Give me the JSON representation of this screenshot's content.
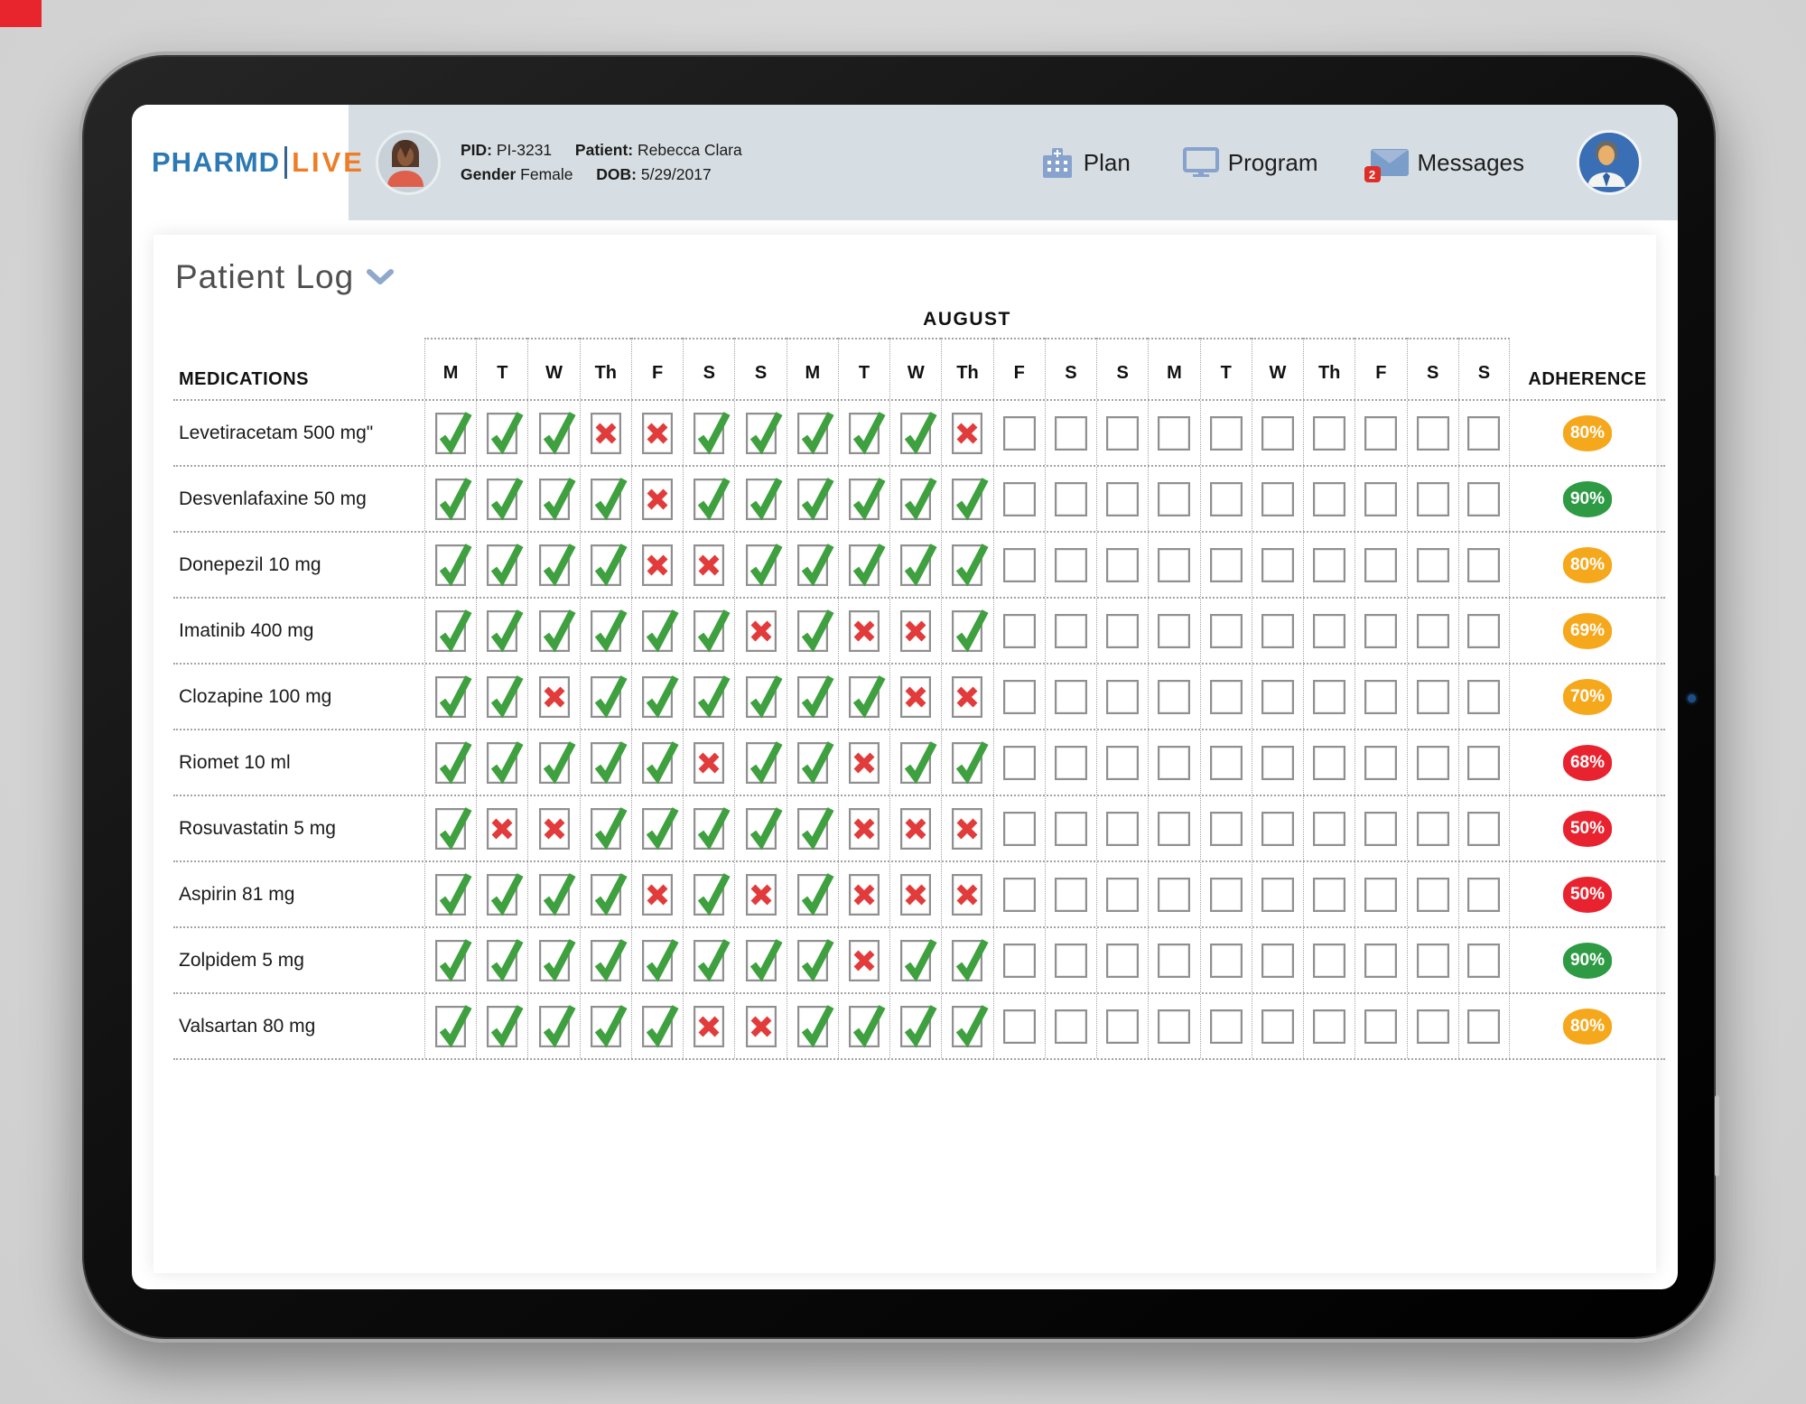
{
  "colors": {
    "corner_mark": "#E8242C",
    "header_bar": "#D7DEE3",
    "logo_blue": "#2C79B3",
    "logo_orange": "#EE7D26",
    "nav_icon_blue": "#87A3CD",
    "check_green": "#3EA03E",
    "cross_red": "#E23B3B"
  },
  "header": {
    "logo": {
      "part1": "PHARMD",
      "part2": "LIVE"
    },
    "patient": {
      "pid_label": "PID:",
      "pid": "PI-3231",
      "patient_label": "Patient:",
      "name": "Rebecca Clara",
      "gender_label": "Gender",
      "gender": "Female",
      "dob_label": "DOB:",
      "dob": "5/29/2017"
    },
    "nav": [
      {
        "label": "Plan",
        "icon": "hospital-icon"
      },
      {
        "label": "Program",
        "icon": "monitor-icon"
      },
      {
        "label": "Messages",
        "icon": "envelope-icon",
        "badge": "2"
      }
    ]
  },
  "main": {
    "title": "Patient Log",
    "month": "AUGUST",
    "medications_header": "MEDICATIONS",
    "adherence_header": "ADHERENCE",
    "day_headers": [
      "M",
      "T",
      "W",
      "Th",
      "F",
      "S",
      "S",
      "M",
      "T",
      "W",
      "Th",
      "F",
      "S",
      "S",
      "M",
      "T",
      "W",
      "Th",
      "F",
      "S",
      "S"
    ],
    "adherence_colors": {
      "green": "#2E9A44",
      "orange": "#F6A81C",
      "red": "#E8232F"
    },
    "rows": [
      {
        "medication": "Levetiracetam 500 mg\"",
        "days": "CCCXXCCCCCX..........",
        "adherence": "80%",
        "adherence_color": "orange"
      },
      {
        "medication": "Desvenlafaxine 50 mg",
        "days": "CCCCXCCCCCC..........",
        "adherence": "90%",
        "adherence_color": "green"
      },
      {
        "medication": "Donepezil 10 mg",
        "days": "CCCCXXCCCCC..........",
        "adherence": "80%",
        "adherence_color": "orange"
      },
      {
        "medication": "Imatinib 400 mg",
        "days": "CCCCCCXCXXC..........",
        "adherence": "69%",
        "adherence_color": "orange"
      },
      {
        "medication": "Clozapine 100 mg",
        "days": "CCXCCCCCCXX..........",
        "adherence": "70%",
        "adherence_color": "orange"
      },
      {
        "medication": "Riomet 10 ml",
        "days": "CCCCCXCCXCC..........",
        "adherence": "68%",
        "adherence_color": "red"
      },
      {
        "medication": "Rosuvastatin 5 mg",
        "days": "CXXCCCCCXXX..........",
        "adherence": "50%",
        "adherence_color": "red"
      },
      {
        "medication": "Aspirin 81 mg",
        "days": "CCCCXCXCXXX..........",
        "adherence": "50%",
        "adherence_color": "red"
      },
      {
        "medication": "Zolpidem 5 mg",
        "days": "CCCCCCCCXCC..........",
        "adherence": "90%",
        "adherence_color": "green"
      },
      {
        "medication": "Valsartan 80 mg",
        "days": "CCCCCXXCCCC..........",
        "adherence": "80%",
        "adherence_color": "orange"
      }
    ]
  }
}
